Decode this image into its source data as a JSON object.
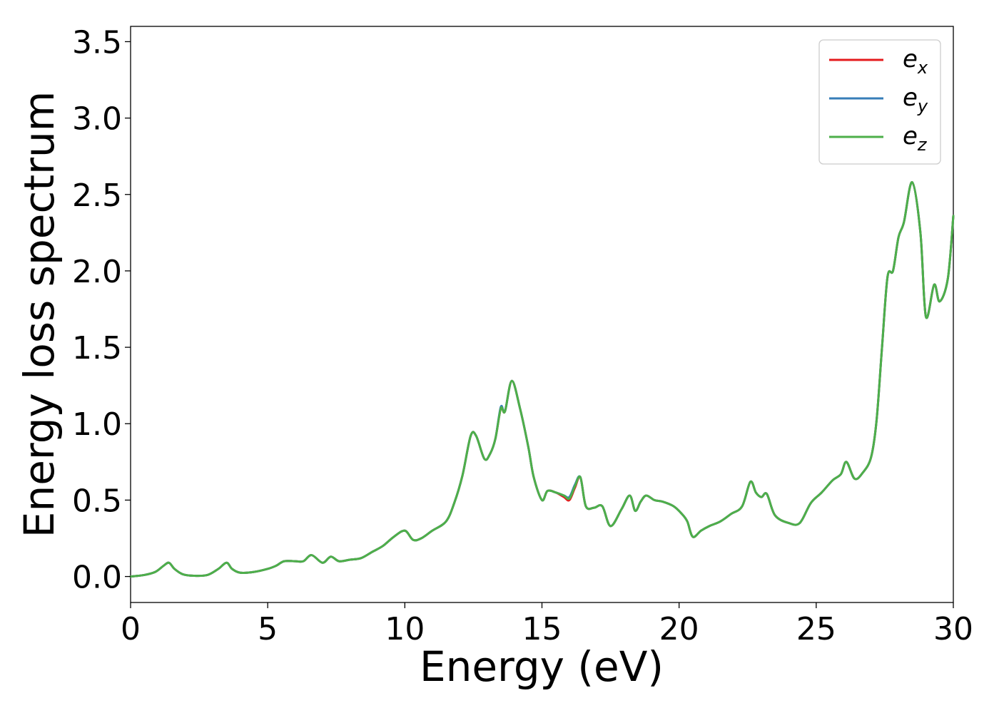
{
  "chart_data": {
    "type": "line",
    "xlabel": "Energy (eV)",
    "ylabel": "Energy loss spectrum",
    "xlim": [
      0,
      30
    ],
    "ylim": [
      -0.17,
      3.6
    ],
    "xticks": [
      0,
      5,
      10,
      15,
      20,
      25,
      30
    ],
    "xtick_labels": [
      "0",
      "5",
      "10",
      "15",
      "20",
      "25",
      "30"
    ],
    "yticks": [
      0.0,
      0.5,
      1.0,
      1.5,
      2.0,
      2.5,
      3.0,
      3.5
    ],
    "ytick_labels": [
      "0.0",
      "0.5",
      "1.0",
      "1.5",
      "2.0",
      "2.5",
      "3.0",
      "3.5"
    ],
    "grid": false,
    "legend_position": "top-right",
    "legend": [
      {
        "base": "e",
        "sub": "x",
        "color": "#e41a1c"
      },
      {
        "base": "e",
        "sub": "y",
        "color": "#377eb8"
      },
      {
        "base": "e",
        "sub": "z",
        "color": "#4daf4a"
      }
    ],
    "x": [
      0,
      0.5,
      0.9,
      1.2,
      1.4,
      1.6,
      1.9,
      2.3,
      2.8,
      3.2,
      3.5,
      3.7,
      4.0,
      4.5,
      5.0,
      5.3,
      5.6,
      6.0,
      6.3,
      6.6,
      7.0,
      7.3,
      7.6,
      8.0,
      8.4,
      8.8,
      9.2,
      9.6,
      10.0,
      10.3,
      10.6,
      11.0,
      11.5,
      11.8,
      12.1,
      12.4,
      12.6,
      12.9,
      13.1,
      13.3,
      13.5,
      13.65,
      13.9,
      14.2,
      14.5,
      14.7,
      15.0,
      15.2,
      15.5,
      15.8,
      16.0,
      16.2,
      16.4,
      16.6,
      16.9,
      17.2,
      17.5,
      17.9,
      18.2,
      18.4,
      18.6,
      18.8,
      19.1,
      19.4,
      19.8,
      20.1,
      20.3,
      20.5,
      20.8,
      21.1,
      21.5,
      21.9,
      22.3,
      22.6,
      22.8,
      23.0,
      23.2,
      23.5,
      24.0,
      24.4,
      24.8,
      25.2,
      25.6,
      25.9,
      26.1,
      26.4,
      26.7,
      27.0,
      27.2,
      27.4,
      27.6,
      27.8,
      28.0,
      28.2,
      28.5,
      28.8,
      29.0,
      29.3,
      29.5,
      29.8,
      30.0
    ],
    "series": [
      {
        "name": "e_x",
        "color": "#e41a1c",
        "values": [
          0.0,
          0.01,
          0.03,
          0.07,
          0.09,
          0.05,
          0.015,
          0.005,
          0.01,
          0.05,
          0.09,
          0.05,
          0.025,
          0.03,
          0.05,
          0.07,
          0.1,
          0.1,
          0.1,
          0.14,
          0.09,
          0.13,
          0.1,
          0.11,
          0.12,
          0.16,
          0.2,
          0.26,
          0.3,
          0.24,
          0.25,
          0.3,
          0.36,
          0.48,
          0.66,
          0.92,
          0.92,
          0.77,
          0.8,
          0.9,
          1.1,
          1.08,
          1.28,
          1.1,
          0.85,
          0.65,
          0.5,
          0.56,
          0.55,
          0.52,
          0.5,
          0.58,
          0.65,
          0.46,
          0.45,
          0.46,
          0.33,
          0.44,
          0.53,
          0.43,
          0.49,
          0.53,
          0.5,
          0.49,
          0.46,
          0.41,
          0.36,
          0.26,
          0.3,
          0.33,
          0.36,
          0.41,
          0.46,
          0.62,
          0.55,
          0.52,
          0.54,
          0.4,
          0.35,
          0.35,
          0.48,
          0.55,
          0.63,
          0.67,
          0.75,
          0.64,
          0.68,
          0.78,
          1.02,
          1.5,
          1.96,
          2.0,
          2.22,
          2.32,
          2.58,
          2.25,
          1.7,
          1.91,
          1.8,
          1.95,
          2.36
        ]
      },
      {
        "name": "e_y",
        "color": "#377eb8",
        "values": [
          0.0,
          0.01,
          0.03,
          0.07,
          0.09,
          0.05,
          0.015,
          0.005,
          0.01,
          0.05,
          0.09,
          0.05,
          0.025,
          0.03,
          0.05,
          0.07,
          0.1,
          0.1,
          0.1,
          0.14,
          0.09,
          0.13,
          0.1,
          0.11,
          0.12,
          0.16,
          0.2,
          0.26,
          0.3,
          0.24,
          0.25,
          0.3,
          0.36,
          0.48,
          0.66,
          0.92,
          0.92,
          0.77,
          0.8,
          0.9,
          1.11,
          1.08,
          1.28,
          1.1,
          0.85,
          0.65,
          0.5,
          0.56,
          0.55,
          0.53,
          0.52,
          0.6,
          0.65,
          0.46,
          0.45,
          0.46,
          0.33,
          0.44,
          0.53,
          0.43,
          0.49,
          0.53,
          0.5,
          0.49,
          0.46,
          0.41,
          0.36,
          0.26,
          0.3,
          0.33,
          0.36,
          0.41,
          0.46,
          0.62,
          0.55,
          0.52,
          0.54,
          0.4,
          0.35,
          0.35,
          0.48,
          0.55,
          0.63,
          0.67,
          0.75,
          0.64,
          0.68,
          0.78,
          1.02,
          1.5,
          1.96,
          2.0,
          2.22,
          2.32,
          2.58,
          2.25,
          1.7,
          1.91,
          1.8,
          1.95,
          2.36
        ]
      },
      {
        "name": "e_z",
        "color": "#4daf4a",
        "values": [
          0.0,
          0.01,
          0.03,
          0.07,
          0.09,
          0.05,
          0.015,
          0.005,
          0.01,
          0.05,
          0.09,
          0.05,
          0.025,
          0.03,
          0.05,
          0.07,
          0.1,
          0.1,
          0.1,
          0.14,
          0.09,
          0.13,
          0.1,
          0.11,
          0.12,
          0.16,
          0.2,
          0.26,
          0.3,
          0.24,
          0.25,
          0.3,
          0.36,
          0.48,
          0.66,
          0.92,
          0.92,
          0.77,
          0.8,
          0.9,
          1.1,
          1.08,
          1.28,
          1.1,
          0.85,
          0.65,
          0.5,
          0.56,
          0.55,
          0.53,
          0.51,
          0.59,
          0.65,
          0.46,
          0.45,
          0.46,
          0.33,
          0.44,
          0.53,
          0.43,
          0.49,
          0.53,
          0.5,
          0.49,
          0.46,
          0.41,
          0.36,
          0.26,
          0.3,
          0.33,
          0.36,
          0.41,
          0.46,
          0.62,
          0.55,
          0.52,
          0.54,
          0.4,
          0.35,
          0.35,
          0.48,
          0.55,
          0.63,
          0.67,
          0.75,
          0.64,
          0.68,
          0.78,
          1.02,
          1.5,
          1.96,
          2.0,
          2.22,
          2.32,
          2.58,
          2.25,
          1.7,
          1.91,
          1.8,
          1.95,
          2.36
        ]
      }
    ]
  }
}
